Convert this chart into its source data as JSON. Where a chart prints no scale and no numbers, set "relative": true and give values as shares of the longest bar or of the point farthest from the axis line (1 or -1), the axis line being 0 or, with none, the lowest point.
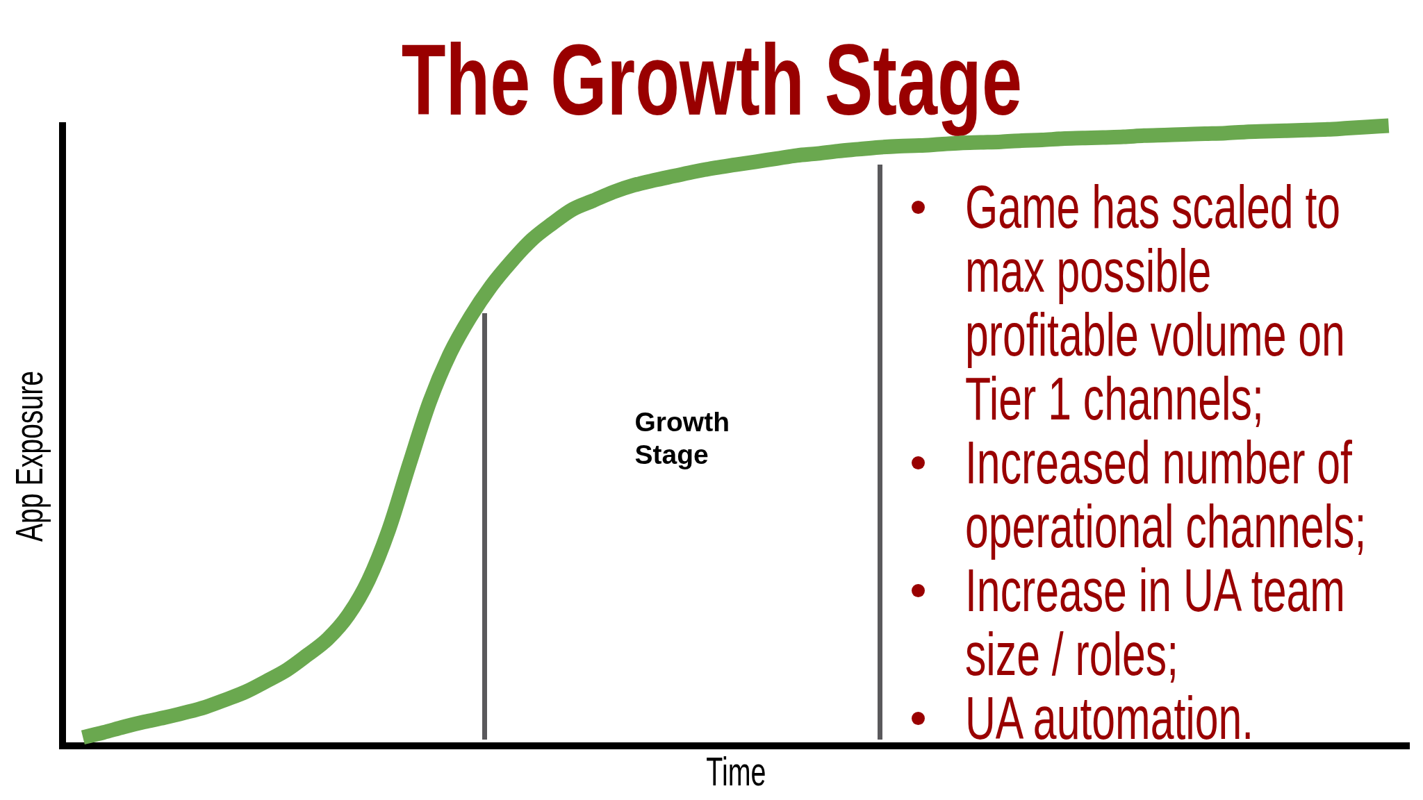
{
  "chart_data": {
    "type": "line",
    "title": "The Growth Stage",
    "xlabel": "Time",
    "ylabel": "App Exposure",
    "relative": true,
    "categories": [
      null,
      null,
      null,
      null,
      null,
      null,
      null,
      null,
      null,
      null,
      null,
      null,
      null,
      null,
      null,
      null,
      null,
      null,
      null,
      null,
      null,
      null,
      null,
      null,
      null,
      null,
      null,
      null,
      null,
      null,
      null,
      null,
      null,
      null,
      null,
      null,
      null,
      null,
      null,
      null,
      null,
      null,
      null,
      null,
      null,
      null,
      null,
      null,
      null,
      null,
      null,
      null,
      null,
      null,
      null,
      null,
      null,
      null,
      null,
      null,
      null,
      null,
      null,
      null,
      null,
      null,
      null
    ],
    "values": [
      null,
      0.013,
      0.021,
      0.03,
      0.038,
      0.045,
      0.053,
      0.062,
      0.074,
      0.087,
      0.104,
      0.122,
      0.146,
      0.172,
      0.21,
      0.267,
      0.349,
      0.454,
      0.555,
      0.633,
      0.692,
      0.741,
      0.781,
      0.816,
      0.842,
      0.865,
      0.879,
      0.893,
      0.904,
      0.912,
      0.919,
      0.926,
      0.932,
      0.937,
      0.942,
      0.947,
      0.952,
      0.955,
      0.959,
      0.962,
      0.965,
      0.967,
      0.968,
      0.97,
      0.972,
      0.973,
      0.974,
      0.976,
      0.977,
      0.979,
      0.98,
      0.981,
      0.982,
      0.984,
      0.985,
      0.986,
      0.987,
      0.988,
      0.99,
      0.991,
      0.992,
      0.993,
      0.994,
      0.996,
      0.998,
      1.0,
      null
    ],
    "color": "#6aa84f",
    "annotations": [
      "Growth Stage",
      "Game has scaled to\nmax possible\nprofitable volume on\nTier 1 channels;",
      "Increased number of\noperational channels;",
      "Increase in UA team\nsize / roles;",
      "UA automation."
    ]
  }
}
